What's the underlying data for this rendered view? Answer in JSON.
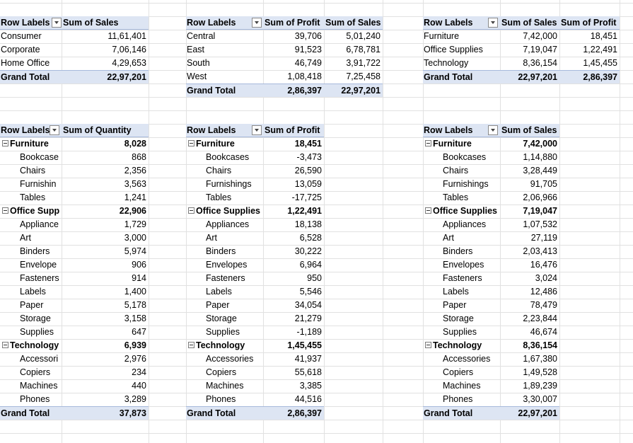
{
  "pivot_sales_by_segment": {
    "headers": [
      "Row Labels",
      "Sum of Sales"
    ],
    "rows": [
      [
        "Consumer",
        "11,61,401"
      ],
      [
        "Corporate",
        "7,06,146"
      ],
      [
        "Home Office",
        "4,29,653"
      ]
    ],
    "total": [
      "Grand Total",
      "22,97,201"
    ]
  },
  "pivot_region": {
    "headers": [
      "Row Labels",
      "Sum of Profit",
      "Sum of Sales"
    ],
    "rows": [
      [
        "Central",
        "39,706",
        "5,01,240"
      ],
      [
        "East",
        "91,523",
        "6,78,781"
      ],
      [
        "South",
        "46,749",
        "3,91,722"
      ],
      [
        "West",
        "1,08,418",
        "7,25,458"
      ]
    ],
    "total": [
      "Grand Total",
      "2,86,397",
      "22,97,201"
    ]
  },
  "pivot_category": {
    "headers": [
      "Row Labels",
      "Sum of Sales",
      "Sum of Profit"
    ],
    "rows": [
      [
        "Furniture",
        "7,42,000",
        "18,451"
      ],
      [
        "Office Supplies",
        "7,19,047",
        "1,22,491"
      ],
      [
        "Technology",
        "8,36,154",
        "1,45,455"
      ]
    ],
    "total": [
      "Grand Total",
      "22,97,201",
      "2,86,397"
    ]
  },
  "pivot_quantity": {
    "headers": [
      "Row Labels",
      "Sum of Quantity"
    ],
    "groups": [
      {
        "label": "Furniture",
        "value": "8,028",
        "items": [
          [
            "Bookcase",
            "868"
          ],
          [
            "Chairs",
            "2,356"
          ],
          [
            "Furnishin",
            "3,563"
          ],
          [
            "Tables",
            "1,241"
          ]
        ]
      },
      {
        "label": "Office Supp",
        "value": "22,906",
        "items": [
          [
            "Appliance",
            "1,729"
          ],
          [
            "Art",
            "3,000"
          ],
          [
            "Binders",
            "5,974"
          ],
          [
            "Envelope",
            "906"
          ],
          [
            "Fasteners",
            "914"
          ],
          [
            "Labels",
            "1,400"
          ],
          [
            "Paper",
            "5,178"
          ],
          [
            "Storage",
            "3,158"
          ],
          [
            "Supplies",
            "647"
          ]
        ]
      },
      {
        "label": "Technology",
        "value": "6,939",
        "items": [
          [
            "Accessori",
            "2,976"
          ],
          [
            "Copiers",
            "234"
          ],
          [
            "Machines",
            "440"
          ],
          [
            "Phones",
            "3,289"
          ]
        ]
      }
    ],
    "total": [
      "Grand Total",
      "37,873"
    ]
  },
  "pivot_profit": {
    "headers": [
      "Row Labels",
      "Sum of Profit"
    ],
    "groups": [
      {
        "label": "Furniture",
        "value": "18,451",
        "items": [
          [
            "Bookcases",
            "-3,473"
          ],
          [
            "Chairs",
            "26,590"
          ],
          [
            "Furnishings",
            "13,059"
          ],
          [
            "Tables",
            "-17,725"
          ]
        ]
      },
      {
        "label": "Office Supplies",
        "value": "1,22,491",
        "items": [
          [
            "Appliances",
            "18,138"
          ],
          [
            "Art",
            "6,528"
          ],
          [
            "Binders",
            "30,222"
          ],
          [
            "Envelopes",
            "6,964"
          ],
          [
            "Fasteners",
            "950"
          ],
          [
            "Labels",
            "5,546"
          ],
          [
            "Paper",
            "34,054"
          ],
          [
            "Storage",
            "21,279"
          ],
          [
            "Supplies",
            "-1,189"
          ]
        ]
      },
      {
        "label": "Technology",
        "value": "1,45,455",
        "items": [
          [
            "Accessories",
            "41,937"
          ],
          [
            "Copiers",
            "55,618"
          ],
          [
            "Machines",
            "3,385"
          ],
          [
            "Phones",
            "44,516"
          ]
        ]
      }
    ],
    "total": [
      "Grand Total",
      "2,86,397"
    ]
  },
  "pivot_sales_sub": {
    "headers": [
      "Row Labels",
      "Sum of Sales"
    ],
    "groups": [
      {
        "label": "Furniture",
        "value": "7,42,000",
        "items": [
          [
            "Bookcases",
            "1,14,880"
          ],
          [
            "Chairs",
            "3,28,449"
          ],
          [
            "Furnishings",
            "91,705"
          ],
          [
            "Tables",
            "2,06,966"
          ]
        ]
      },
      {
        "label": "Office Supplies",
        "value": "7,19,047",
        "items": [
          [
            "Appliances",
            "1,07,532"
          ],
          [
            "Art",
            "27,119"
          ],
          [
            "Binders",
            "2,03,413"
          ],
          [
            "Envelopes",
            "16,476"
          ],
          [
            "Fasteners",
            "3,024"
          ],
          [
            "Labels",
            "12,486"
          ],
          [
            "Paper",
            "78,479"
          ],
          [
            "Storage",
            "2,23,844"
          ],
          [
            "Supplies",
            "46,674"
          ]
        ]
      },
      {
        "label": "Technology",
        "value": "8,36,154",
        "items": [
          [
            "Accessories",
            "1,67,380"
          ],
          [
            "Copiers",
            "1,49,528"
          ],
          [
            "Machines",
            "1,89,239"
          ],
          [
            "Phones",
            "3,30,007"
          ]
        ]
      }
    ],
    "total": [
      "Grand Total",
      "22,97,201"
    ]
  }
}
